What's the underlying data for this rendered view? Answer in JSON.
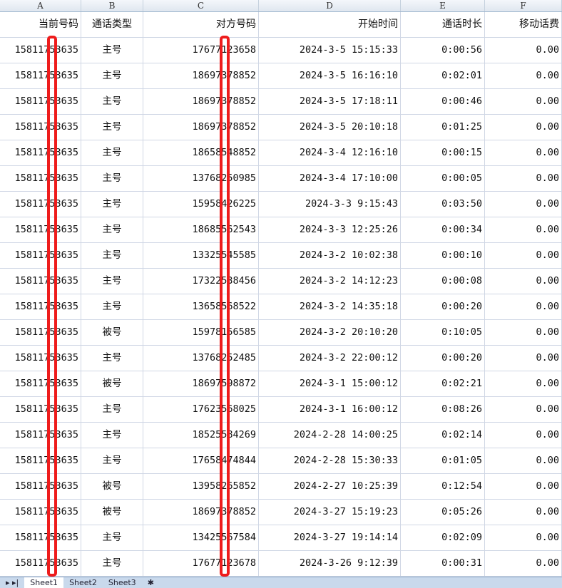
{
  "columns": [
    "A",
    "B",
    "C",
    "D",
    "E",
    "F"
  ],
  "headers": [
    "当前号码",
    "通话类型",
    "对方号码",
    "开始时间",
    "通话时长",
    "移动话费"
  ],
  "rows": [
    [
      "15811753635",
      "主号",
      "17677123658",
      "2024-3-5 15:15:33",
      "0:00:56",
      "0.00"
    ],
    [
      "15811753635",
      "主号",
      "18697378852",
      "2024-3-5 16:16:10",
      "0:02:01",
      "0.00"
    ],
    [
      "15811753635",
      "主号",
      "18697378852",
      "2024-3-5 17:18:11",
      "0:00:46",
      "0.00"
    ],
    [
      "15811753635",
      "主号",
      "18697378852",
      "2024-3-5 20:10:18",
      "0:01:25",
      "0.00"
    ],
    [
      "15811753635",
      "主号",
      "18658548852",
      "2024-3-4 12:16:10",
      "0:00:15",
      "0.00"
    ],
    [
      "15811753635",
      "主号",
      "13768250985",
      "2024-3-4 17:10:00",
      "0:00:05",
      "0.00"
    ],
    [
      "15811753635",
      "主号",
      "15958426225",
      "2024-3-3 9:15:43",
      "0:03:50",
      "0.00"
    ],
    [
      "15811753635",
      "主号",
      "18685562543",
      "2024-3-3 12:25:26",
      "0:00:34",
      "0.00"
    ],
    [
      "15811753635",
      "主号",
      "13325545585",
      "2024-3-2 10:02:38",
      "0:00:10",
      "0.00"
    ],
    [
      "15811753635",
      "主号",
      "17322538456",
      "2024-3-2 14:12:23",
      "0:00:08",
      "0.00"
    ],
    [
      "15811753635",
      "主号",
      "13658568522",
      "2024-3-2 14:35:18",
      "0:00:20",
      "0.00"
    ],
    [
      "15811753635",
      "被号",
      "15978156585",
      "2024-3-2 20:10:20",
      "0:10:05",
      "0.00"
    ],
    [
      "15811753635",
      "主号",
      "13768252485",
      "2024-3-2 22:00:12",
      "0:00:20",
      "0.00"
    ],
    [
      "15811753635",
      "被号",
      "18697598872",
      "2024-3-1 15:00:12",
      "0:02:21",
      "0.00"
    ],
    [
      "15811753635",
      "主号",
      "17623568025",
      "2024-3-1 16:00:12",
      "0:08:26",
      "0.00"
    ],
    [
      "15811753635",
      "主号",
      "18525584269",
      "2024-2-28 14:00:25",
      "0:02:14",
      "0.00"
    ],
    [
      "15811753635",
      "主号",
      "17658474844",
      "2024-2-28 15:30:33",
      "0:01:05",
      "0.00"
    ],
    [
      "15811753635",
      "被号",
      "13958265852",
      "2024-2-27 10:25:39",
      "0:12:54",
      "0.00"
    ],
    [
      "15811753635",
      "被号",
      "18697378852",
      "2024-3-27 15:19:23",
      "0:05:26",
      "0.00"
    ],
    [
      "15811753635",
      "主号",
      "13425567584",
      "2024-3-27 19:14:14",
      "0:02:09",
      "0.00"
    ],
    [
      "15811753635",
      "主号",
      "17677123678",
      "2024-3-26 9:12:39",
      "0:00:31",
      "0.00"
    ]
  ],
  "sheet_tabs": [
    "Sheet1",
    "Sheet2",
    "Sheet3"
  ],
  "active_tab": "Sheet1",
  "colors": {
    "redaction": "#ee1c1c",
    "grid": "#d0d7e5"
  }
}
